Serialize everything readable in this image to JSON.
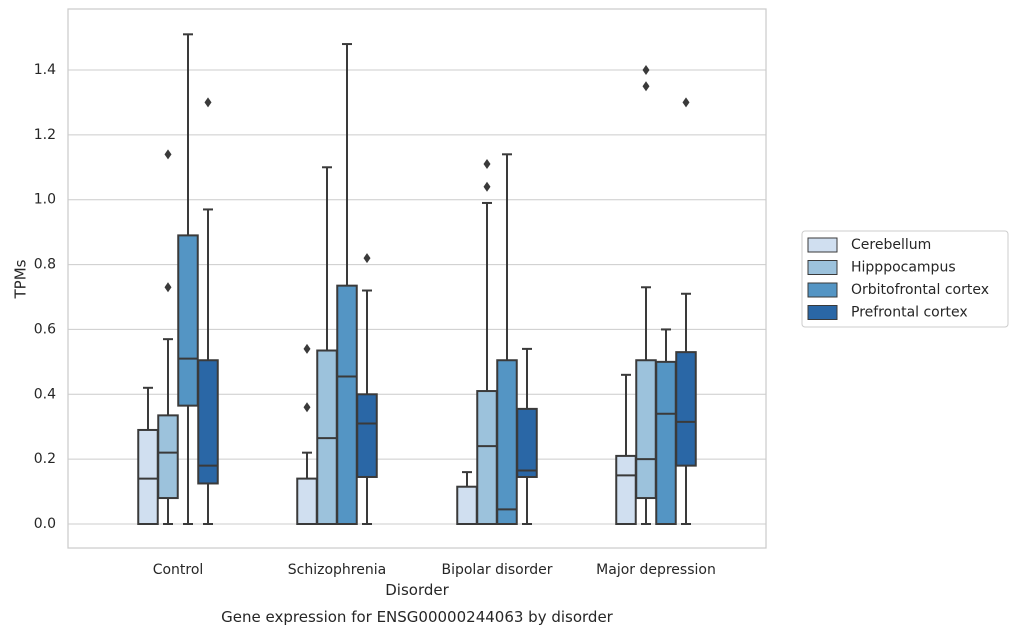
{
  "chart_data": {
    "type": "boxplot",
    "title": "",
    "caption": "Gene expression for ENSG00000244063 by disorder",
    "xlabel": "Disorder",
    "ylabel": "TPMs",
    "ylim": [
      -0.07,
      1.6
    ],
    "yticks": [
      0.0,
      0.2,
      0.4,
      0.6,
      0.8,
      1.0,
      1.2,
      1.4
    ],
    "ytick_labels": [
      "0.0",
      "0.2",
      "0.4",
      "0.6",
      "0.8",
      "1.0",
      "1.2",
      "1.4"
    ],
    "grid": "horizontal",
    "legend_position": "right",
    "categories": [
      "Control",
      "Schizophrenia",
      "Bipolar disorder",
      "Major depression"
    ],
    "series": [
      {
        "name": "Cerebellum",
        "color": "#d0dff0",
        "boxes": [
          {
            "q1": 0.0,
            "median": 0.14,
            "q3": 0.29,
            "whislo": 0.0,
            "whishi": 0.42,
            "fliers": []
          },
          {
            "q1": 0.0,
            "median": 0.0,
            "q3": 0.14,
            "whislo": 0.0,
            "whishi": 0.22,
            "fliers": [
              0.36,
              0.54
            ]
          },
          {
            "q1": 0.0,
            "median": 0.0,
            "q3": 0.115,
            "whislo": 0.0,
            "whishi": 0.16,
            "fliers": []
          },
          {
            "q1": 0.0,
            "median": 0.15,
            "q3": 0.21,
            "whislo": 0.0,
            "whishi": 0.46,
            "fliers": []
          }
        ]
      },
      {
        "name": "Hipppocampus",
        "color": "#9cc2dc",
        "boxes": [
          {
            "q1": 0.08,
            "median": 0.22,
            "q3": 0.335,
            "whislo": 0.0,
            "whishi": 0.57,
            "fliers": [
              0.73,
              1.14
            ]
          },
          {
            "q1": 0.0,
            "median": 0.265,
            "q3": 0.535,
            "whislo": 0.0,
            "whishi": 1.1,
            "fliers": []
          },
          {
            "q1": 0.0,
            "median": 0.24,
            "q3": 0.41,
            "whislo": 0.0,
            "whishi": 0.99,
            "fliers": [
              1.04,
              1.11
            ]
          },
          {
            "q1": 0.08,
            "median": 0.2,
            "q3": 0.505,
            "whislo": 0.0,
            "whishi": 0.73,
            "fliers": [
              1.35,
              1.4
            ]
          }
        ]
      },
      {
        "name": "Orbitofrontal cortex",
        "color": "#5495c4",
        "boxes": [
          {
            "q1": 0.365,
            "median": 0.51,
            "q3": 0.89,
            "whislo": 0.0,
            "whishi": 1.51,
            "fliers": []
          },
          {
            "q1": 0.0,
            "median": 0.455,
            "q3": 0.735,
            "whislo": 0.0,
            "whishi": 1.48,
            "fliers": []
          },
          {
            "q1": 0.0,
            "median": 0.045,
            "q3": 0.505,
            "whislo": 0.0,
            "whishi": 1.14,
            "fliers": []
          },
          {
            "q1": 0.0,
            "median": 0.34,
            "q3": 0.5,
            "whislo": 0.0,
            "whishi": 0.6,
            "fliers": []
          }
        ]
      },
      {
        "name": "Prefrontal cortex",
        "color": "#2a67a6",
        "boxes": [
          {
            "q1": 0.125,
            "median": 0.18,
            "q3": 0.505,
            "whislo": 0.0,
            "whishi": 0.97,
            "fliers": [
              1.3
            ]
          },
          {
            "q1": 0.145,
            "median": 0.31,
            "q3": 0.4,
            "whislo": 0.0,
            "whishi": 0.72,
            "fliers": [
              0.82
            ]
          },
          {
            "q1": 0.145,
            "median": 0.165,
            "q3": 0.355,
            "whislo": 0.0,
            "whishi": 0.54,
            "fliers": []
          },
          {
            "q1": 0.18,
            "median": 0.315,
            "q3": 0.53,
            "whislo": 0.0,
            "whishi": 0.71,
            "fliers": [
              1.3
            ]
          }
        ]
      }
    ],
    "colors": {
      "grid": "#cccccc",
      "frame": "#cccccc",
      "line": "#3a3a3a",
      "text": "#262626"
    }
  }
}
